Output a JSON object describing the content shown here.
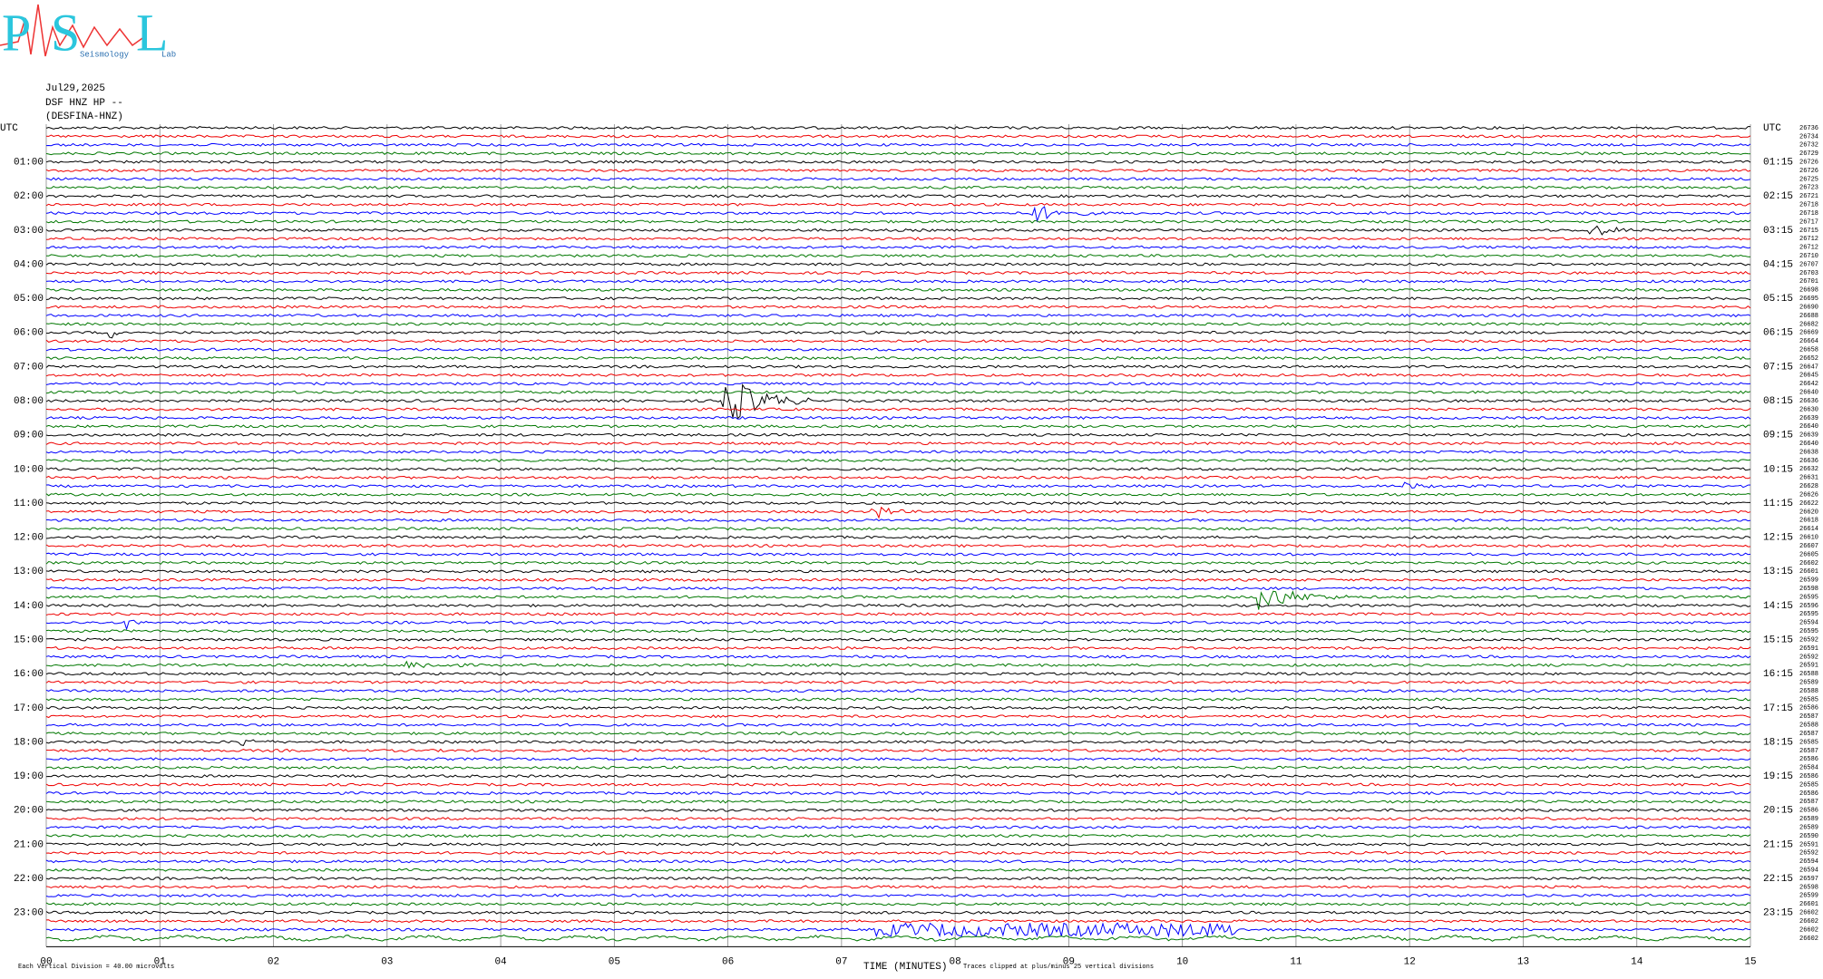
{
  "logo": {
    "letters": [
      "P",
      "S",
      "L"
    ],
    "words": [
      "Seismology",
      "Lab"
    ]
  },
  "header": {
    "lines": [
      "Jul29,2025",
      "DSF HNZ HP --",
      "(DESFINA-HNZ)"
    ]
  },
  "left_labels": [
    "UTC",
    "01:00",
    "02:00",
    "03:00",
    "04:00",
    "05:00",
    "06:00",
    "07:00",
    "08:00",
    "09:00",
    "10:00",
    "11:00",
    "12:00",
    "13:00",
    "14:00",
    "15:00",
    "16:00",
    "17:00",
    "18:00",
    "19:00",
    "20:00",
    "21:00",
    "22:00",
    "23:00"
  ],
  "right_labels": [
    "UTC",
    "01:15",
    "02:15",
    "03:15",
    "04:15",
    "05:15",
    "06:15",
    "07:15",
    "08:15",
    "09:15",
    "10:15",
    "11:15",
    "12:15",
    "13:15",
    "14:15",
    "15:15",
    "16:15",
    "17:15",
    "18:15",
    "19:15",
    "20:15",
    "21:15",
    "22:15",
    "23:15"
  ],
  "trace_offsets": [
    26736,
    26734,
    26732,
    26729,
    26726,
    26726,
    26725,
    26723,
    26721,
    26718,
    26718,
    26717,
    26715,
    26712,
    26712,
    26710,
    26707,
    26703,
    26701,
    26698,
    26695,
    26690,
    26688,
    26682,
    26669,
    26664,
    26658,
    26652,
    26647,
    26645,
    26642,
    26640,
    26636,
    26630,
    26639,
    26640,
    26639,
    26640,
    26638,
    26636,
    26632,
    26631,
    26628,
    26626,
    26622,
    26620,
    26618,
    26614,
    26610,
    26607,
    26605,
    26602,
    26601,
    26599,
    26598,
    26595,
    26596,
    26595,
    26594,
    26595,
    26592,
    26591,
    26592,
    26591,
    26588,
    26589,
    26588,
    26585,
    26586,
    26587,
    26588,
    26587,
    26585,
    26587,
    26586,
    26584,
    26586,
    26585,
    26586,
    26587,
    26586,
    26589,
    26589,
    26590,
    26591,
    26592,
    26594,
    26594,
    26597,
    26598,
    26599,
    26601,
    26602,
    26602,
    26602,
    26602
  ],
  "x_ticks": [
    "00",
    "01",
    "02",
    "03",
    "04",
    "05",
    "06",
    "07",
    "08",
    "09",
    "10",
    "11",
    "12",
    "13",
    "14",
    "15"
  ],
  "footer": {
    "scale": "Each Vertical Division =   40.00 microvolts",
    "axis_title": "TIME (MINUTES)",
    "clip_note": "Traces clipped at plus/minus 25 vertical divisions"
  }
}
